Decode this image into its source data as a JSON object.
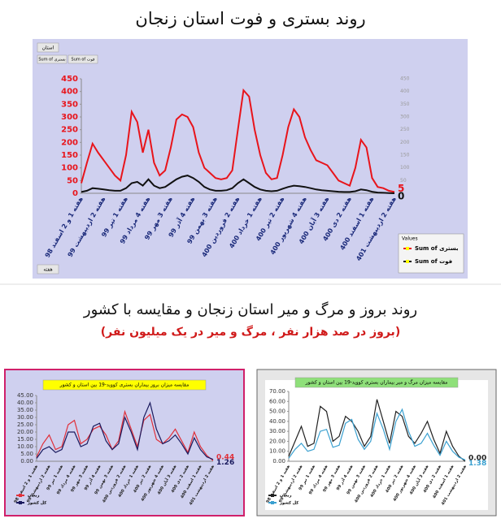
{
  "page_title": "روند بستری و فوت استان زنجان",
  "section_title": "روند بروز و مرگ و میر استان زنجان و مقایسه با کشور",
  "section_subtitle": "(بروز در صد هزار نفر ، مرگ و میر در یک میلیون نفر)",
  "controls": {
    "province": "استان",
    "week": "هفته",
    "legend_title": "Values"
  },
  "chart_data": [
    {
      "type": "line",
      "categories": [
        "هفته 1 و 2 اسفند 98",
        null,
        null,
        null,
        "هفته 2 اردیبهشت 99",
        null,
        null,
        null,
        "هفته 1 تیر 99",
        null,
        null,
        null,
        "هفته 4 مرداد 99",
        null,
        null,
        null,
        "هفته 3 مهر 99",
        null,
        null,
        null,
        "هفته 4 آذر 99",
        null,
        null,
        null,
        "هفته 3 بهمن 99",
        null,
        null,
        null,
        "هفته 2 فروردین 400",
        null,
        null,
        null,
        "هفته 1 خرداد 400",
        null,
        null,
        null,
        "هفته 2 تیر 400",
        null,
        null,
        null,
        "هفته 4 شهریور 400",
        null,
        null,
        null,
        "هفته 3 آبان 400",
        null,
        null,
        null,
        "هفته 2 دی 400",
        null,
        null,
        null,
        "هفته 1 اسفند 400",
        null,
        null,
        null,
        "هفته 2 اردیبهشت 401"
      ],
      "series": [
        {
          "name": "Sum of بستری",
          "color": "#e8141b",
          "values": [
            40,
            120,
            195,
            160,
            130,
            100,
            70,
            50,
            150,
            320,
            280,
            160,
            250,
            120,
            70,
            90,
            180,
            290,
            310,
            300,
            260,
            160,
            100,
            80,
            60,
            55,
            60,
            90,
            250,
            405,
            380,
            250,
            150,
            80,
            55,
            60,
            150,
            260,
            330,
            300,
            220,
            170,
            130,
            120,
            110,
            80,
            50,
            40,
            30,
            100,
            210,
            180,
            60,
            25,
            20,
            10,
            5
          ]
        },
        {
          "name": "Sum of فوت",
          "color": "#111111",
          "values": [
            5,
            10,
            20,
            18,
            15,
            12,
            10,
            10,
            20,
            40,
            45,
            30,
            55,
            30,
            20,
            25,
            40,
            55,
            65,
            70,
            60,
            45,
            25,
            15,
            10,
            10,
            12,
            20,
            40,
            55,
            40,
            25,
            15,
            10,
            8,
            10,
            18,
            25,
            30,
            28,
            25,
            20,
            15,
            12,
            10,
            8,
            6,
            5,
            5,
            8,
            15,
            12,
            6,
            3,
            2,
            1,
            0
          ]
        }
      ],
      "ylim": [
        0,
        450
      ],
      "yticks": [
        0,
        50,
        100,
        150,
        200,
        250,
        300,
        350,
        400,
        450
      ],
      "y2lim": [
        0,
        450
      ],
      "y2ticks": [
        0,
        50,
        100,
        150,
        200,
        250,
        300,
        350,
        400,
        450
      ]
    },
    {
      "type": "line",
      "title": "مقایسه میزان بروز بیماران بستری کووید-19 بین استان و کشور",
      "categories": [
        "هفته 1 و 2 اسفند 98",
        null,
        "هفته 2 اردیبهشت 99",
        null,
        "هفته 1 تیر 99",
        null,
        "هفته 4 مرداد 99",
        null,
        "هفته 3 مهر 99",
        null,
        "هفته 4 آذر 99",
        null,
        "هفته 3 بهمن 99",
        null,
        "هفته 2 فروردین 400",
        null,
        "هفته 1 خرداد 400",
        null,
        "هفته 2 تیر 400",
        null,
        "هفته 4 شهریور 400",
        null,
        "هفته 3 آبان 400",
        null,
        "هفته 2 دی 400",
        null,
        "هفته 1 اسفند 400",
        null,
        "هفته 2 اردیبهشت 401"
      ],
      "series": [
        {
          "name": "زنجان",
          "color": "#e0303a",
          "values": [
            3,
            12,
            18,
            8,
            10,
            25,
            28,
            12,
            15,
            22,
            24,
            18,
            8,
            14,
            34,
            22,
            10,
            28,
            32,
            15,
            12,
            16,
            22,
            14,
            6,
            20,
            10,
            4,
            0.44
          ]
        },
        {
          "name": "کل کشور",
          "color": "#1a1a5e",
          "values": [
            2,
            8,
            10,
            6,
            8,
            20,
            20,
            10,
            12,
            24,
            26,
            14,
            8,
            12,
            30,
            20,
            8,
            30,
            40,
            22,
            12,
            14,
            18,
            12,
            5,
            16,
            8,
            3,
            1.26
          ]
        }
      ],
      "ylim": [
        0,
        45
      ],
      "yticks": [
        {
          "value": 0,
          "label": "0.00"
        },
        {
          "value": 5,
          "label": "5.00"
        },
        {
          "value": 10,
          "label": "10.00"
        },
        {
          "value": 15,
          "label": "15.00"
        },
        {
          "value": 20,
          "label": "20.00"
        },
        {
          "value": 25,
          "label": "25.00"
        },
        {
          "value": 30,
          "label": "30.00"
        },
        {
          "value": 35,
          "label": "35.00"
        },
        {
          "value": 40,
          "label": "40.00"
        },
        {
          "value": 45,
          "label": "45.00"
        }
      ]
    },
    {
      "type": "line",
      "title": "مقایسه میزان مرگ و میر بیماران بستری کووید-19 بین استان و کشور",
      "categories": [
        "هفته 1 و 2 اسفند 98",
        null,
        "هفته 2 اردیبهشت 99",
        null,
        "هفته 1 تیر 99",
        null,
        "هفته 4 مرداد 99",
        null,
        "هفته 3 مهر 99",
        null,
        "هفته 4 آذر 99",
        null,
        "هفته 3 بهمن 99",
        null,
        "هفته 2 فروردین 400",
        null,
        "هفته 1 خرداد 400",
        null,
        "هفته 2 تیر 400",
        null,
        "هفته 4 شهریور 400",
        null,
        "هفته 3 آبان 400",
        null,
        "هفته 2 دی 400",
        null,
        "هفته 1 اسفند 400",
        null,
        "هفته 2 اردیبهشت 401"
      ],
      "series": [
        {
          "name": "زنجان",
          "color": "#222222",
          "values": [
            5,
            20,
            35,
            15,
            18,
            55,
            50,
            20,
            25,
            45,
            40,
            30,
            15,
            25,
            62,
            40,
            18,
            50,
            45,
            25,
            18,
            28,
            40,
            22,
            8,
            30,
            15,
            5,
            0
          ],
          "value_labels": [
            null,
            null,
            null,
            null,
            null,
            null,
            null,
            null,
            null,
            null,
            null,
            null,
            null,
            null,
            null,
            null,
            null,
            null,
            null,
            null,
            null,
            null,
            null,
            null,
            null,
            null,
            null,
            null,
            "0.00"
          ]
        },
        {
          "name": "کل کشور",
          "color": "#3aa0d0",
          "values": [
            3,
            12,
            18,
            10,
            12,
            30,
            32,
            14,
            16,
            38,
            42,
            22,
            12,
            20,
            48,
            32,
            12,
            40,
            52,
            30,
            15,
            18,
            28,
            16,
            6,
            20,
            10,
            4,
            1.38
          ]
        }
      ],
      "ylim": [
        0,
        70
      ],
      "yticks": [
        {
          "value": 0,
          "label": "0.00"
        },
        {
          "value": 10,
          "label": "10.00"
        },
        {
          "value": 20,
          "label": "20.00"
        },
        {
          "value": 30,
          "label": "30.00"
        },
        {
          "value": 40,
          "label": "40.00"
        },
        {
          "value": 50,
          "label": "50.00"
        },
        {
          "value": 60,
          "label": "60.00"
        },
        {
          "value": 70,
          "label": "70.00"
        }
      ]
    }
  ]
}
